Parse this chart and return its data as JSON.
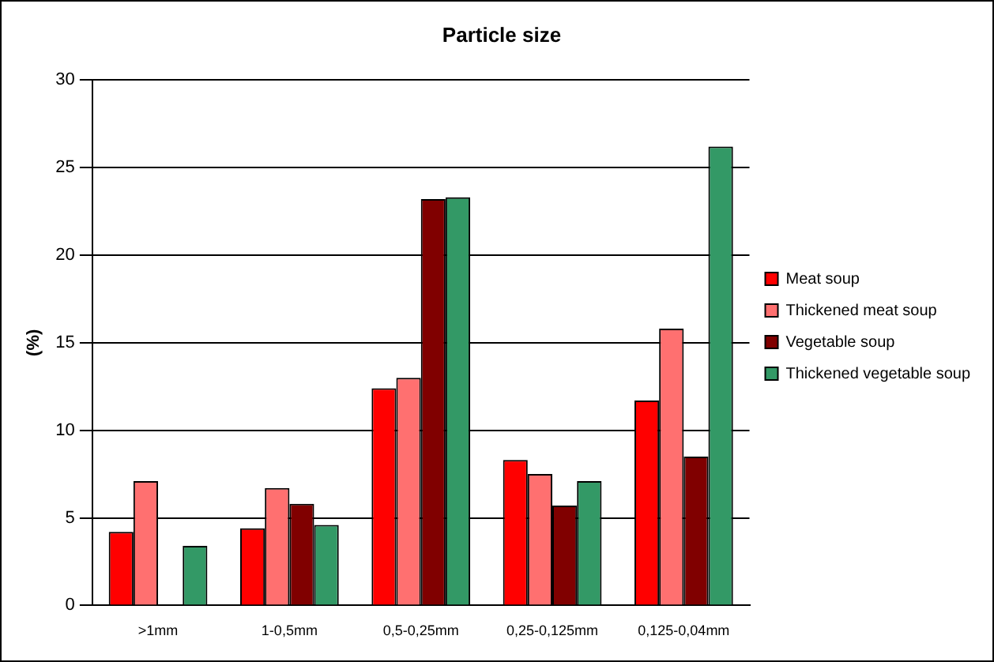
{
  "chart_data": {
    "type": "bar",
    "title": "Particle size",
    "ylabel": "(%)",
    "categories": [
      ">1mm",
      "1-0,5mm",
      "0,5-0,25mm",
      "0,25-0,125mm",
      "0,125-0,04mm"
    ],
    "series": [
      {
        "name": "Meat soup",
        "color": "#ff0000",
        "values": [
          4.2,
          4.4,
          12.4,
          8.3,
          11.7
        ]
      },
      {
        "name": "Thickened meat soup",
        "color": "#ff7070",
        "values": [
          7.1,
          6.7,
          13.0,
          7.5,
          15.8
        ]
      },
      {
        "name": "Vegetable soup",
        "color": "#800000",
        "values": [
          0,
          5.8,
          23.2,
          5.7,
          8.5
        ]
      },
      {
        "name": "Thickened vegetable soup",
        "color": "#339966",
        "values": [
          3.4,
          4.6,
          23.3,
          7.1,
          26.2
        ]
      }
    ],
    "ylim": [
      0,
      30
    ],
    "yticks": [
      0,
      5,
      10,
      15,
      20,
      25,
      30
    ],
    "grid": "y",
    "legend": "right"
  }
}
